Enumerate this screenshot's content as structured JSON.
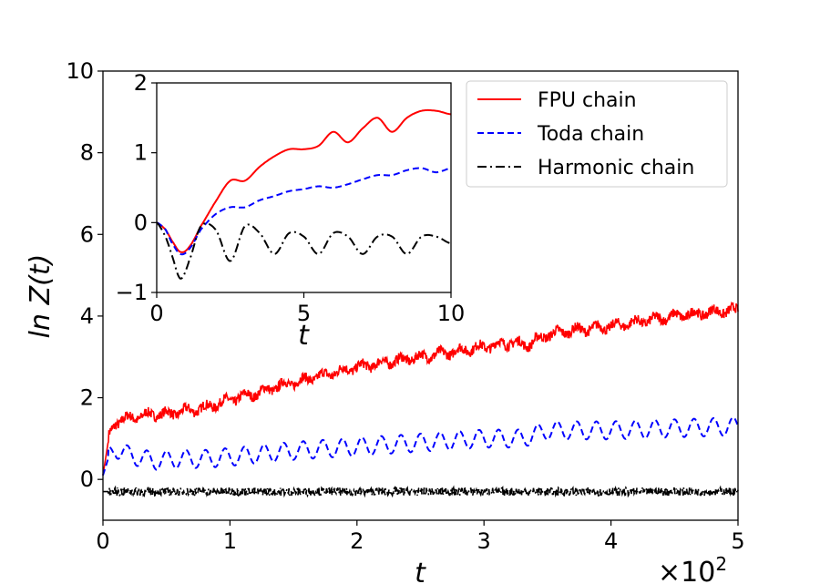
{
  "chart_data": [
    {
      "id": "main",
      "type": "line",
      "title": "",
      "xlabel": "t",
      "ylabel": "ln Z(t)",
      "xlim": [
        0,
        5
      ],
      "ylim": [
        -1,
        10
      ],
      "x_ticks": [
        "0",
        "1",
        "2",
        "3",
        "4",
        "5"
      ],
      "y_ticks": [
        "0",
        "2",
        "4",
        "6",
        "8",
        "10"
      ],
      "x_offset_label": "×10",
      "x_offset_exponent": "2",
      "grid": false,
      "series": [
        {
          "name": "FPU chain",
          "color": "#ff0000",
          "style": "solid",
          "x": [
            0,
            0.05,
            0.1,
            0.2,
            0.3,
            0.4,
            0.5,
            0.6,
            0.7,
            0.8,
            0.9,
            1.0,
            1.2,
            1.4,
            1.6,
            1.8,
            2.0,
            2.2,
            2.4,
            2.6,
            2.8,
            3.0,
            3.2,
            3.35,
            3.5,
            3.7,
            4.0,
            4.2,
            4.5,
            4.8,
            5.0
          ],
          "y": [
            0.1,
            1.1,
            1.4,
            1.5,
            1.55,
            1.6,
            1.6,
            1.65,
            1.7,
            1.75,
            1.85,
            1.95,
            2.1,
            2.3,
            2.45,
            2.6,
            2.75,
            2.85,
            2.95,
            3.05,
            3.15,
            3.25,
            3.35,
            3.3,
            3.55,
            3.65,
            3.75,
            3.85,
            4.0,
            4.1,
            4.15
          ]
        },
        {
          "name": "Toda chain",
          "color": "#0000ff",
          "style": "dashed",
          "x": [
            0,
            0.05,
            0.1,
            0.2,
            0.4,
            0.6,
            0.8,
            1.0,
            1.5,
            2.0,
            2.5,
            3.0,
            3.3,
            3.5,
            4.0,
            4.5,
            5.0
          ],
          "y": [
            0.1,
            0.6,
            0.75,
            0.6,
            0.45,
            0.5,
            0.5,
            0.55,
            0.7,
            0.8,
            0.9,
            1.0,
            1.0,
            1.2,
            1.2,
            1.25,
            1.3
          ]
        },
        {
          "name": "Harmonic chain",
          "color": "#000000",
          "style": "dashdot",
          "x": [
            0,
            1,
            2,
            3,
            4,
            5
          ],
          "y": [
            -0.3,
            -0.3,
            -0.3,
            -0.3,
            -0.3,
            -0.3
          ]
        }
      ]
    },
    {
      "id": "inset",
      "type": "line",
      "title": "",
      "xlabel": "t",
      "ylabel": "",
      "xlim": [
        0,
        10
      ],
      "ylim": [
        -1,
        2
      ],
      "x_ticks": [
        "0",
        "5",
        "10"
      ],
      "y_ticks": [
        "−1",
        "0",
        "1",
        "2"
      ],
      "legend": {
        "placement": "top-right of main plot",
        "entries": [
          "FPU chain",
          "Toda chain",
          "Harmonic chain"
        ]
      },
      "series": [
        {
          "name": "FPU chain",
          "color": "#ff0000",
          "style": "solid",
          "x": [
            0,
            0.3,
            0.5,
            0.8,
            1.1,
            1.5,
            2.0,
            2.5,
            3.0,
            3.5,
            4.0,
            4.5,
            5.0,
            5.5,
            6.0,
            6.5,
            7.0,
            7.5,
            8.0,
            8.5,
            9.0,
            9.5,
            10.0
          ],
          "y": [
            0,
            -0.1,
            -0.25,
            -0.42,
            -0.35,
            -0.05,
            0.3,
            0.6,
            0.6,
            0.8,
            0.95,
            1.05,
            1.05,
            1.1,
            1.3,
            1.15,
            1.35,
            1.5,
            1.3,
            1.5,
            1.6,
            1.6,
            1.55
          ]
        },
        {
          "name": "Toda chain",
          "color": "#0000ff",
          "style": "dashed",
          "x": [
            0,
            0.3,
            0.5,
            0.8,
            1.1,
            1.5,
            2.0,
            2.5,
            3.0,
            3.5,
            4.0,
            4.5,
            5.0,
            5.5,
            6.0,
            6.5,
            7.0,
            7.5,
            8.0,
            8.5,
            9.0,
            9.5,
            10.0
          ],
          "y": [
            0,
            -0.1,
            -0.28,
            -0.45,
            -0.38,
            -0.1,
            0.12,
            0.22,
            0.22,
            0.32,
            0.38,
            0.45,
            0.48,
            0.52,
            0.5,
            0.55,
            0.62,
            0.68,
            0.68,
            0.75,
            0.78,
            0.72,
            0.78
          ]
        },
        {
          "name": "Harmonic chain",
          "color": "#000000",
          "style": "dashdot",
          "x": [
            0,
            0.3,
            0.5,
            0.8,
            1.1,
            1.5,
            2.0,
            2.5,
            3.0,
            3.5,
            4.0,
            4.5,
            5.0,
            5.5,
            6.0,
            6.5,
            7.0,
            7.5,
            8.0,
            8.5,
            9.0,
            9.5,
            10.0
          ],
          "y": [
            0,
            -0.2,
            -0.45,
            -0.8,
            -0.55,
            -0.05,
            -0.1,
            -0.55,
            -0.05,
            -0.15,
            -0.45,
            -0.15,
            -0.2,
            -0.45,
            -0.15,
            -0.2,
            -0.45,
            -0.2,
            -0.2,
            -0.45,
            -0.2,
            -0.2,
            -0.3
          ]
        }
      ]
    }
  ]
}
